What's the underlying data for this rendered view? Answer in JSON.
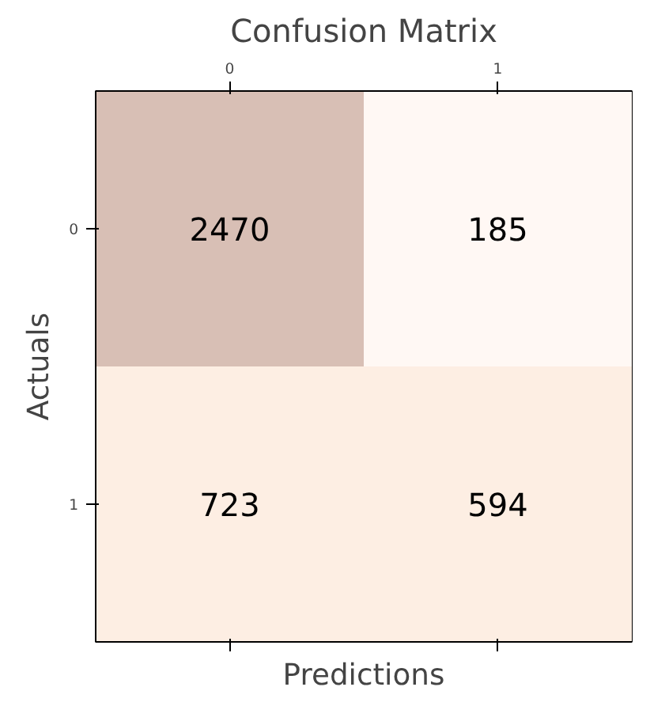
{
  "chart_data": {
    "type": "heatmap",
    "title": "Confusion Matrix",
    "xlabel": "Predictions",
    "ylabel": "Actuals",
    "categories": [
      "0",
      "1"
    ],
    "y_categories": [
      "0",
      "1"
    ],
    "cells": [
      [
        2470,
        185
      ],
      [
        723,
        594
      ]
    ],
    "colors": [
      [
        "#d8bfb5",
        "#fff8f4"
      ],
      [
        "#fdeee3",
        "#fdeee3"
      ]
    ],
    "data_labels": true
  }
}
